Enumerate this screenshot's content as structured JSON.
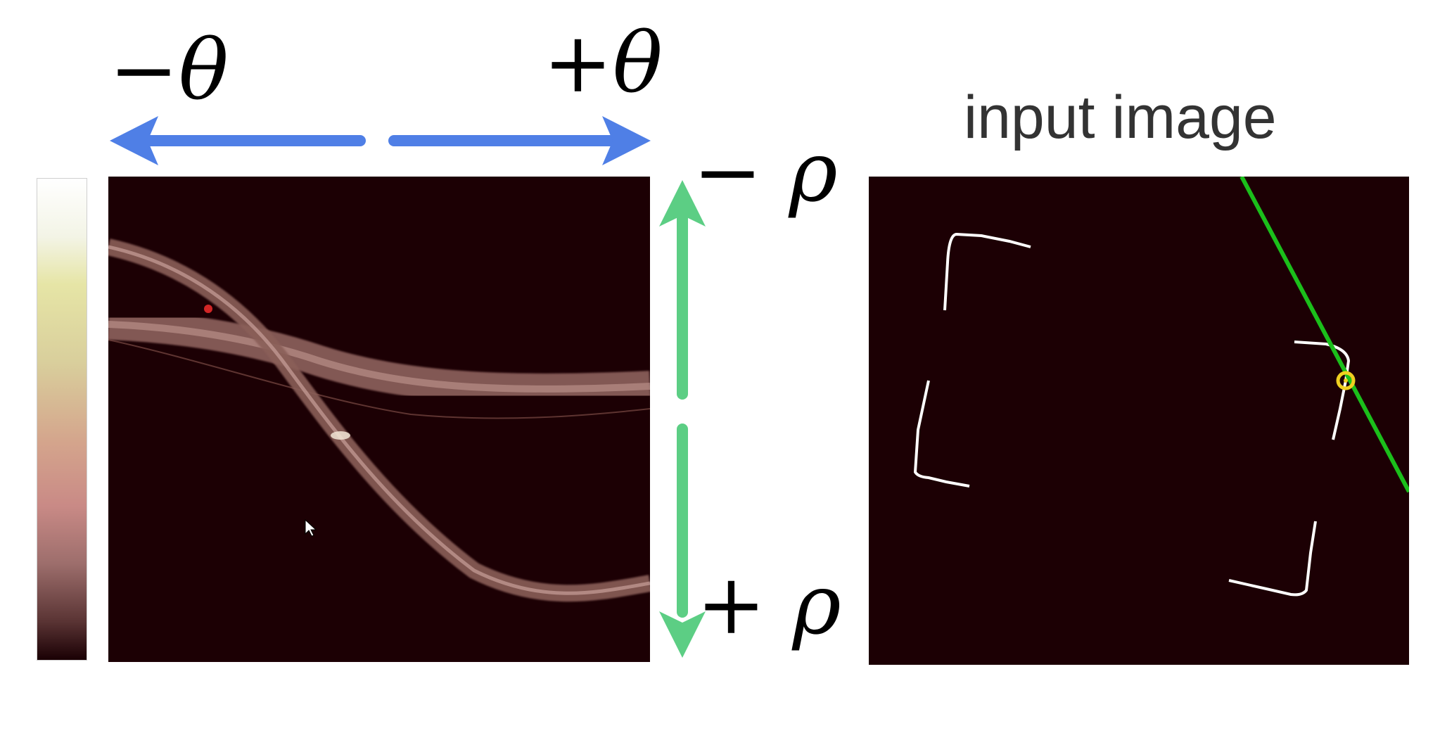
{
  "labels": {
    "theta_negative": "−θ",
    "theta_positive": "+θ",
    "rho_negative": "− ρ",
    "rho_positive": "+ ρ",
    "input_title": "input image"
  },
  "colors": {
    "background": "#1c0004",
    "theta_arrow": "#4f7fe6",
    "rho_arrow": "#5cce84",
    "detected_line": "#1bbf1b",
    "selected_point": "#f0d020",
    "edge_pixels": "#ffffff",
    "accumulator_band": "#b07f78",
    "accumulator_peak": "#ff3030"
  },
  "icons": {
    "cursor": "mouse-pointer-icon"
  }
}
